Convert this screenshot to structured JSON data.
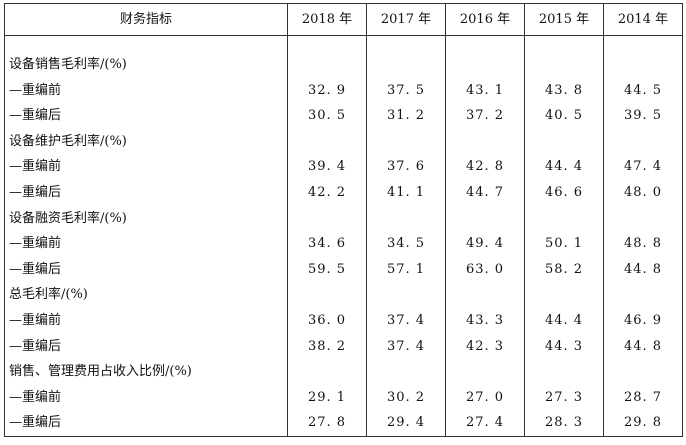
{
  "header": {
    "metric": "财务指标",
    "years": [
      "2018 年",
      "2017 年",
      "2016 年",
      "2015 年",
      "2014 年"
    ]
  },
  "rows": [
    {
      "label": "设备销售毛利率/(%)",
      "values": [
        "",
        "",
        "",
        "",
        ""
      ]
    },
    {
      "label": "—重编前",
      "values": [
        "32. 9",
        "37. 5",
        "43. 1",
        "43. 8",
        "44. 5"
      ]
    },
    {
      "label": "—重编后",
      "values": [
        "30. 5",
        "31. 2",
        "37. 2",
        "40. 5",
        "39. 5"
      ]
    },
    {
      "label": "设备维护毛利率/(%)",
      "values": [
        "",
        "",
        "",
        "",
        ""
      ]
    },
    {
      "label": "—重编前",
      "values": [
        "39. 4",
        "37. 6",
        "42. 8",
        "44. 4",
        "47. 4"
      ]
    },
    {
      "label": "—重编后",
      "values": [
        "42. 2",
        "41. 1",
        "44. 7",
        "46. 6",
        "48. 0"
      ]
    },
    {
      "label": "设备融资毛利率/(%)",
      "values": [
        "",
        "",
        "",
        "",
        ""
      ]
    },
    {
      "label": "—重编前",
      "values": [
        "34. 6",
        "34. 5",
        "49. 4",
        "50. 1",
        "48. 8"
      ]
    },
    {
      "label": "—重编后",
      "values": [
        "59. 5",
        "57. 1",
        "63. 0",
        "58. 2",
        "44. 8"
      ]
    },
    {
      "label": "总毛利率/(%)",
      "values": [
        "",
        "",
        "",
        "",
        ""
      ]
    },
    {
      "label": "—重编前",
      "values": [
        "36. 0",
        "37. 4",
        "43. 3",
        "44. 4",
        "46. 9"
      ]
    },
    {
      "label": "—重编后",
      "values": [
        "38. 2",
        "37. 4",
        "42. 3",
        "44. 3",
        "44. 8"
      ]
    },
    {
      "label": "销售、管理费用占收入比例/(%)",
      "values": [
        "",
        "",
        "",
        "",
        ""
      ]
    },
    {
      "label": "—重编前",
      "values": [
        "29. 1",
        "30. 2",
        "27. 0",
        "27. 3",
        "28. 7"
      ]
    },
    {
      "label": "—重编后",
      "values": [
        "27. 8",
        "29. 4",
        "27. 4",
        "28. 3",
        "29. 8"
      ]
    }
  ]
}
